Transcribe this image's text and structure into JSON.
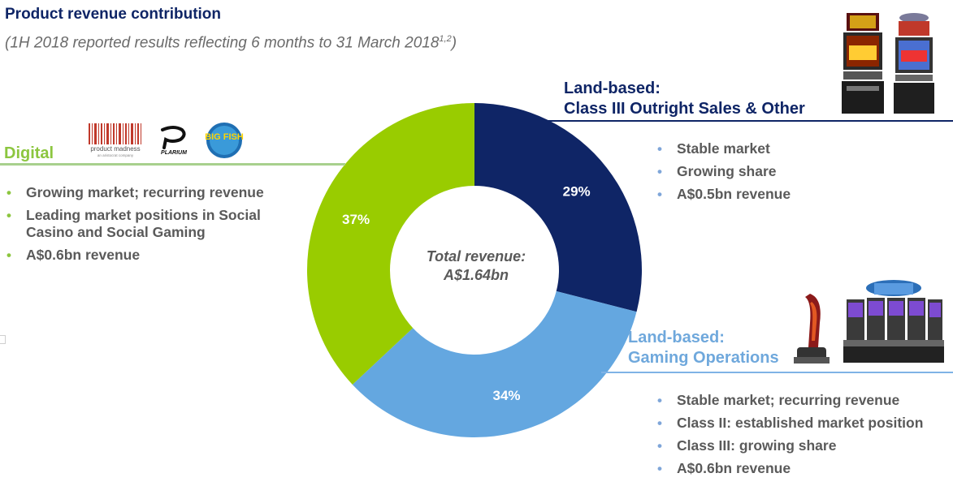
{
  "header": {
    "title": "Product revenue contribution",
    "subtitle": "(1H 2018 reported results reflecting 6 months to 31 March 2018",
    "subtitle_sup": "1,2",
    "subtitle_close": ")"
  },
  "chart_data": {
    "type": "pie",
    "variant": "donut",
    "center_label_line1": "Total  revenue:",
    "center_label_line2": "A$1.64bn",
    "slices": [
      {
        "label": "Land-based: Class III Outright Sales & Other",
        "value": 29,
        "display": "29%",
        "color": "#0f2566"
      },
      {
        "label": "Land-based: Gaming Operations",
        "value": 34,
        "display": "34%",
        "color": "#64a7e0"
      },
      {
        "label": "Digital",
        "value": 37,
        "display": "37%",
        "color": "#99cc00"
      }
    ]
  },
  "digital": {
    "title": "Digital",
    "logos": [
      "product madness",
      "PLARIUM",
      "BIG FISH"
    ],
    "logo_sub": "an aristocrat company",
    "bullets": [
      "Growing market; recurring revenue",
      "Leading market positions in Social Casino and Social Gaming",
      "A$0.6bn revenue"
    ]
  },
  "class3": {
    "title_line1": "Land-based:",
    "title_line2": "Class III Outright Sales & Other",
    "bullets": [
      "Stable market",
      "Growing share",
      "A$0.5bn revenue"
    ]
  },
  "gaming_ops": {
    "title_line1": "Land-based:",
    "title_line2": "Gaming Operations",
    "bullets": [
      "Stable market; recurring revenue",
      "Class II: established market position",
      "Class III: growing share",
      "A$0.6bn revenue"
    ]
  },
  "bullet_glyph": "•",
  "icons": [
    "slot-machine-image",
    "slot-machine-bank-image",
    "product-madness-logo",
    "plarium-logo",
    "big-fish-logo"
  ]
}
